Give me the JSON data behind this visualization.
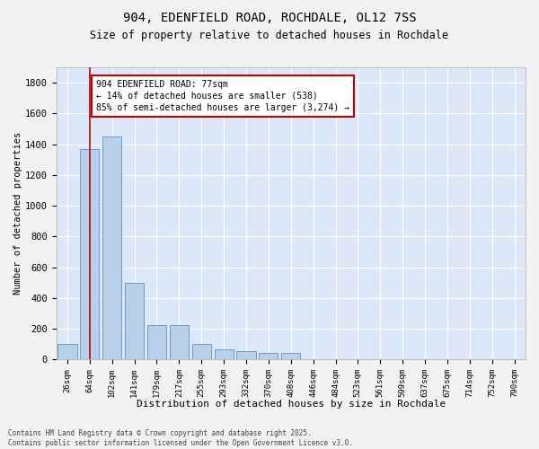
{
  "title": "904, EDENFIELD ROAD, ROCHDALE, OL12 7SS",
  "subtitle": "Size of property relative to detached houses in Rochdale",
  "xlabel": "Distribution of detached houses by size in Rochdale",
  "ylabel": "Number of detached properties",
  "categories": [
    "26sqm",
    "64sqm",
    "102sqm",
    "141sqm",
    "179sqm",
    "217sqm",
    "255sqm",
    "293sqm",
    "332sqm",
    "370sqm",
    "408sqm",
    "446sqm",
    "484sqm",
    "523sqm",
    "561sqm",
    "599sqm",
    "637sqm",
    "675sqm",
    "714sqm",
    "752sqm",
    "790sqm"
  ],
  "values": [
    100,
    1370,
    1450,
    500,
    225,
    225,
    100,
    65,
    55,
    40,
    40,
    0,
    0,
    0,
    0,
    0,
    0,
    0,
    0,
    0,
    0
  ],
  "bar_color": "#b8d0ea",
  "bar_edge_color": "#6090c0",
  "background_color": "#dce8f8",
  "grid_color": "#ffffff",
  "vline_color": "#bb0000",
  "annotation_text": "904 EDENFIELD ROAD: 77sqm\n← 14% of detached houses are smaller (538)\n85% of semi-detached houses are larger (3,274) →",
  "annotation_box_edgecolor": "#bb0000",
  "footer": "Contains HM Land Registry data © Crown copyright and database right 2025.\nContains public sector information licensed under the Open Government Licence v3.0.",
  "ylim": [
    0,
    1900
  ],
  "yticks": [
    0,
    200,
    400,
    600,
    800,
    1000,
    1200,
    1400,
    1600,
    1800
  ],
  "fig_bg": "#f2f2f2"
}
